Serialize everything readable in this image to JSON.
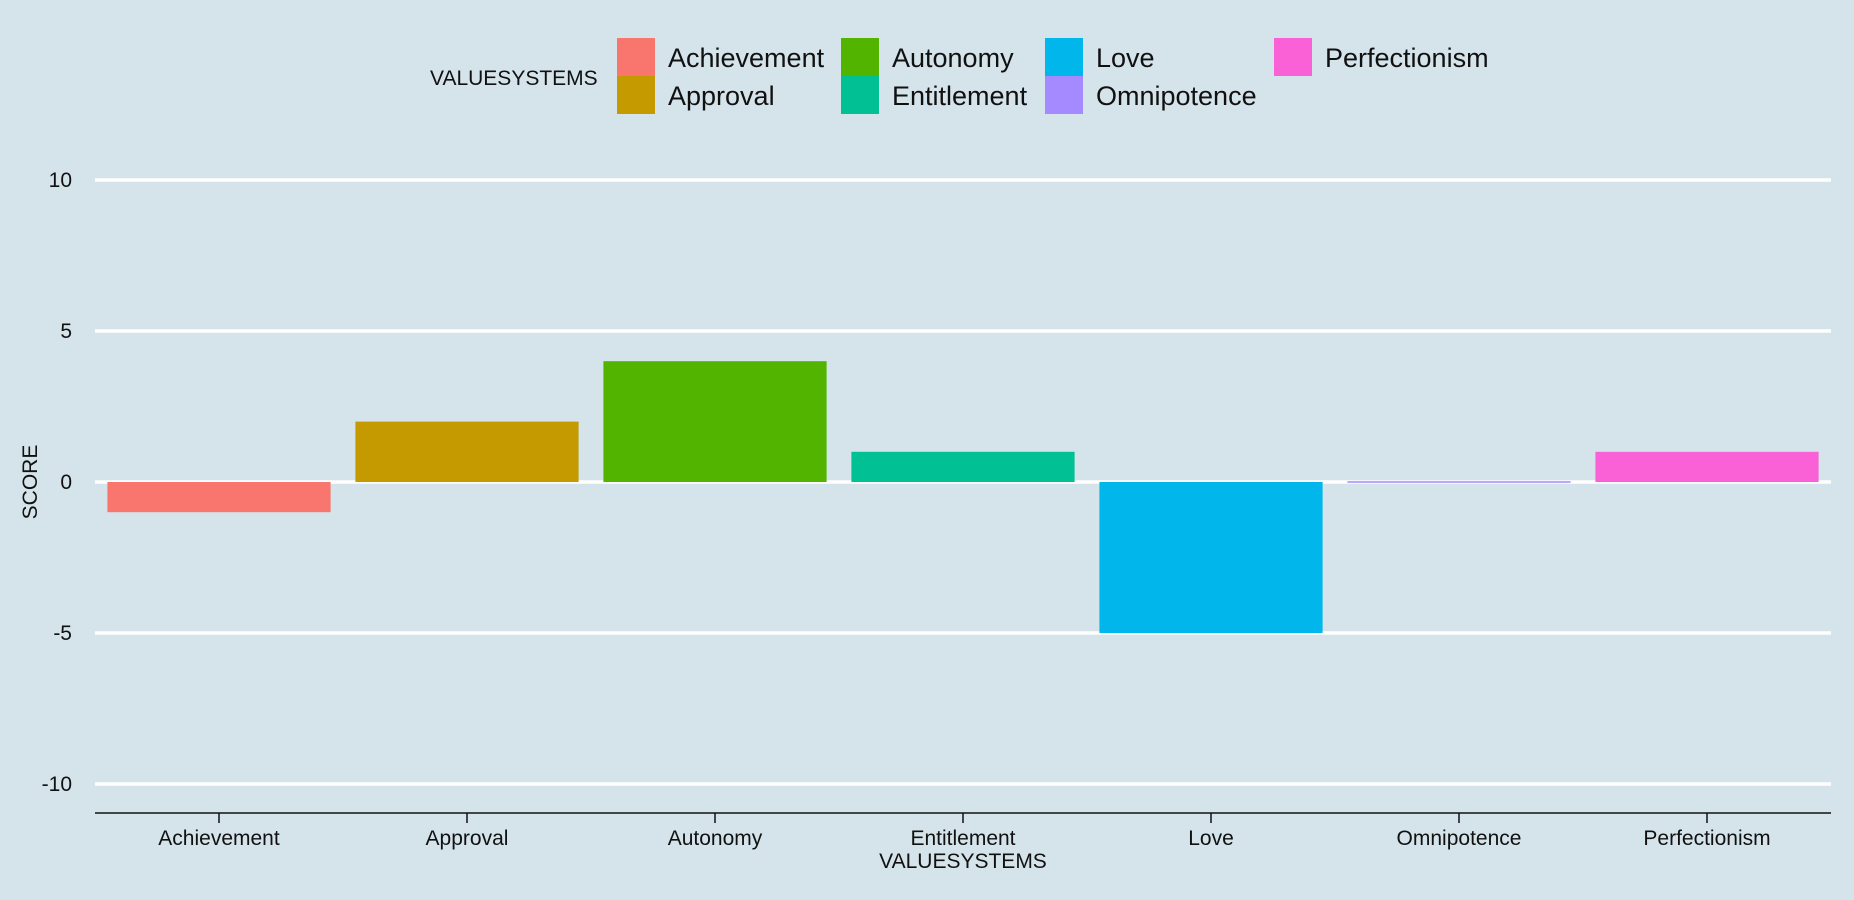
{
  "chart_data": {
    "type": "bar",
    "xlabel": "VALUESYSTEMS",
    "ylabel": "SCORE",
    "categories": [
      "Achievement",
      "Approval",
      "Autonomy",
      "Entitlement",
      "Love",
      "Omnipotence",
      "Perfectionism"
    ],
    "values": [
      -1,
      2,
      4,
      1,
      -5,
      0,
      1
    ],
    "ylim": [
      -10,
      10
    ],
    "yticks": [
      -10,
      -5,
      0,
      5,
      10
    ],
    "grid": true,
    "legend": {
      "title": "VALUESYSTEMS",
      "position": "top",
      "columns": [
        [
          "Achievement",
          "Approval"
        ],
        [
          "Autonomy",
          "Entitlement"
        ],
        [
          "Love",
          "Omnipotence"
        ],
        [
          "Perfectionism"
        ]
      ]
    },
    "colors": {
      "Achievement": "#F8766D",
      "Approval": "#C49A00",
      "Autonomy": "#53B400",
      "Entitlement": "#00C094",
      "Love": "#00B6EB",
      "Omnipotence": "#A58AFF",
      "Perfectionism": "#FB61D7"
    },
    "background": "#d5e4eb",
    "gridline_color": "#ffffff"
  }
}
